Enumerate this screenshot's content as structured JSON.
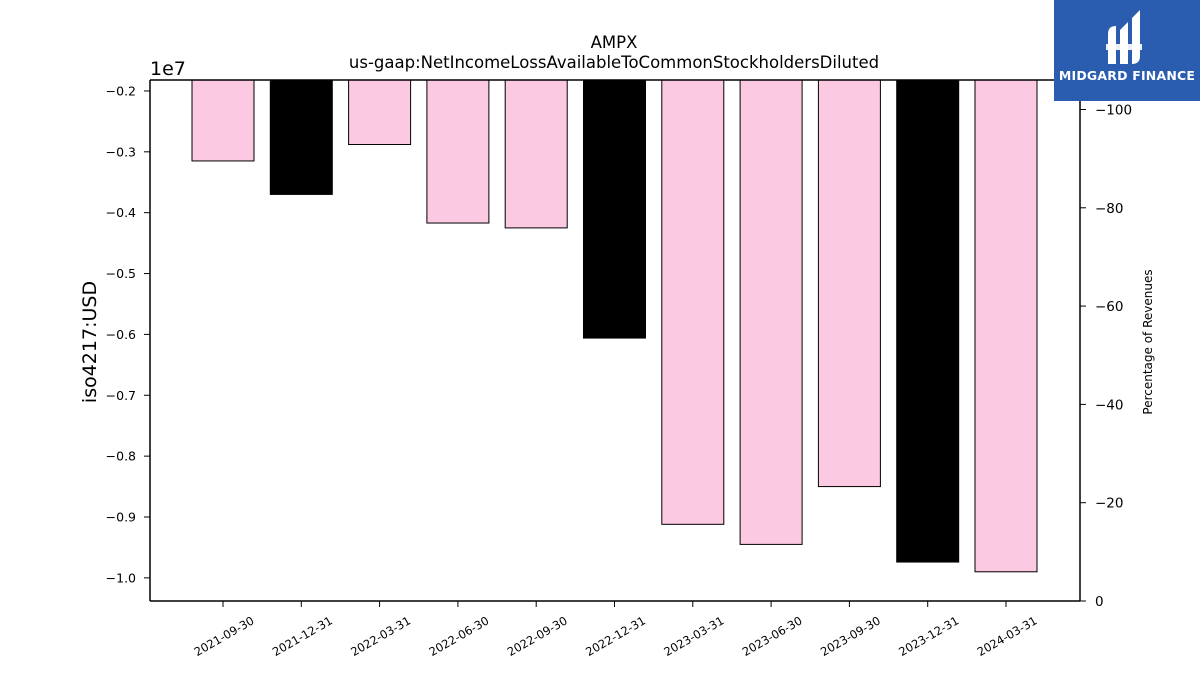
{
  "chart_data": {
    "type": "bar",
    "title": "AMPX",
    "subtitle": "us-gaap:NetIncomeLossAvailableToCommonStockholdersDiluted",
    "ylabel": "iso4217:USD",
    "y_offset_label": "1e7",
    "y2label": "Percentage of Revenues",
    "categories": [
      "2021-09-30",
      "2021-12-31",
      "2022-03-31",
      "2022-06-30",
      "2022-09-30",
      "2022-12-31",
      "2023-03-31",
      "2023-06-30",
      "2023-09-30",
      "2023-12-31",
      "2024-03-31"
    ],
    "values": [
      -3150000,
      -3700000,
      -2880000,
      -4170000,
      -4250000,
      -6060000,
      -9120000,
      -9450000,
      -8500000,
      -9740000,
      -9900000
    ],
    "bar_colors": [
      "#fcc9e3",
      "#000000",
      "#fcc9e3",
      "#fcc9e3",
      "#fcc9e3",
      "#000000",
      "#fcc9e3",
      "#fcc9e3",
      "#fcc9e3",
      "#000000",
      "#fcc9e3"
    ],
    "y_ticks": [
      "−0.2",
      "−0.3",
      "−0.4",
      "−0.5",
      "−0.6",
      "−0.7",
      "−0.8",
      "−0.9",
      "−1.0"
    ],
    "y_tick_values": [
      -2000000,
      -3000000,
      -4000000,
      -5000000,
      -6000000,
      -7000000,
      -8000000,
      -9000000,
      -10000000
    ],
    "ylim": [
      -10380000,
      -1820000
    ],
    "y2_ticks": [
      "0",
      "−20",
      "−40",
      "−60",
      "−80",
      "−100"
    ],
    "y2_tick_values": [
      0,
      -20,
      -40,
      -60,
      -80,
      -100
    ],
    "y2lim": [
      0,
      -106
    ],
    "grid": false
  },
  "logo": {
    "text": "MIDGARD FINANCE",
    "color": "#2a5db0"
  }
}
